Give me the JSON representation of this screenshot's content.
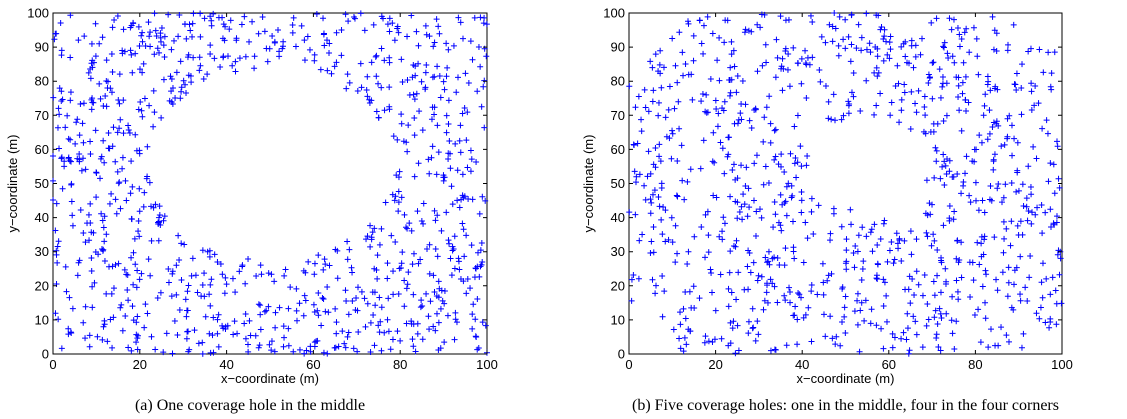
{
  "chart_data": [
    {
      "type": "scatter",
      "marker": "+",
      "color": "#0000ff",
      "xlabel": "x−coordinate (m)",
      "ylabel": "y−coordinate (m)",
      "xlim": [
        0,
        100
      ],
      "ylim": [
        0,
        100
      ],
      "xticks": [
        "0",
        "20",
        "40",
        "60",
        "80",
        "100"
      ],
      "yticks": [
        "0",
        "10",
        "20",
        "30",
        "40",
        "50",
        "60",
        "70",
        "80",
        "90",
        "100"
      ],
      "grid": false,
      "caption": "(a)  One coverage hole in the middle",
      "points_description": "about 1000 uniformly scattered sensor nodes with one empty circular region around (50, 55) of radius ~28"
    },
    {
      "type": "scatter",
      "marker": "+",
      "color": "#0000ff",
      "xlabel": "x−coordinate (m)",
      "ylabel": "y−coordinate (m)",
      "xlim": [
        0,
        100
      ],
      "ylim": [
        0,
        100
      ],
      "xticks": [
        "0",
        "20",
        "40",
        "60",
        "80",
        "100"
      ],
      "yticks": [
        "0",
        "10",
        "20",
        "30",
        "40",
        "50",
        "60",
        "70",
        "80",
        "90",
        "100"
      ],
      "grid": false,
      "caption": "(b)  Five coverage holes: one in the middle, four in the four corners",
      "points_description": "about 1000 uniformly scattered sensor nodes with empty regions around (55, 55), (0, 0), (100, 0), (0, 100), (100, 100)"
    }
  ]
}
